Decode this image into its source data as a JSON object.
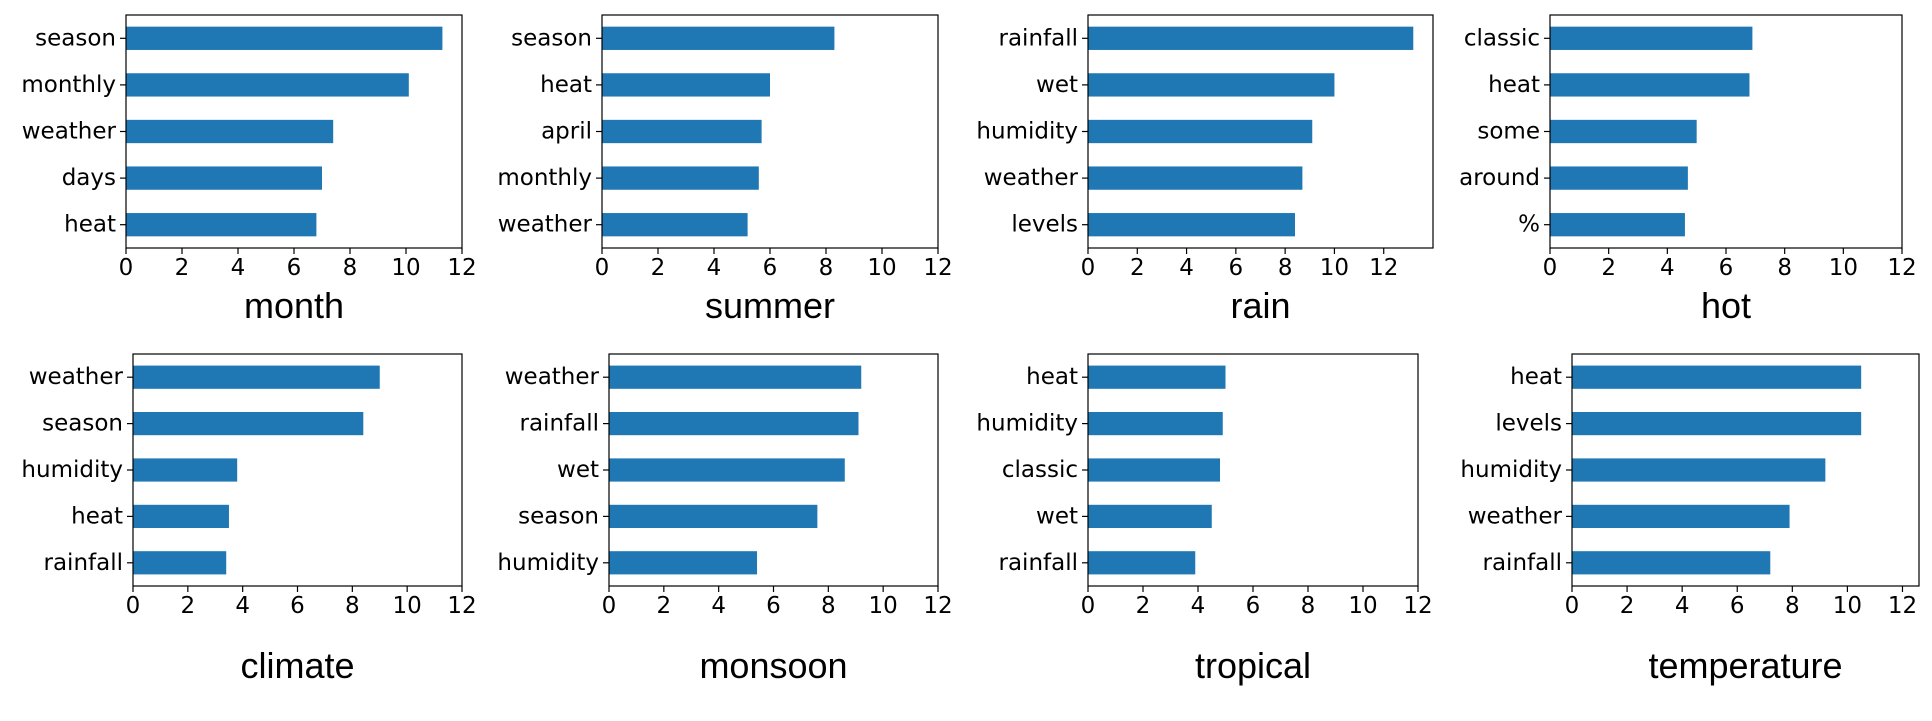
{
  "chart_data": [
    {
      "type": "bar",
      "orientation": "horizontal",
      "title": "month",
      "categories": [
        "season",
        "monthly",
        "weather",
        "days",
        "heat"
      ],
      "values": [
        11.3,
        10.1,
        7.4,
        7.0,
        6.8
      ],
      "xlim": [
        0,
        12
      ],
      "xticks": [
        0,
        2,
        4,
        6,
        8,
        10,
        12
      ]
    },
    {
      "type": "bar",
      "orientation": "horizontal",
      "title": "summer",
      "categories": [
        "season",
        "heat",
        "april",
        "monthly",
        "weather"
      ],
      "values": [
        8.3,
        6.0,
        5.7,
        5.6,
        5.2
      ],
      "xlim": [
        0,
        12
      ],
      "xticks": [
        0,
        2,
        4,
        6,
        8,
        10,
        12
      ]
    },
    {
      "type": "bar",
      "orientation": "horizontal",
      "title": "rain",
      "categories": [
        "rainfall",
        "wet",
        "humidity",
        "weather",
        "levels"
      ],
      "values": [
        13.2,
        10.0,
        9.1,
        8.7,
        8.4
      ],
      "xlim": [
        0,
        14
      ],
      "xticks": [
        0,
        2,
        4,
        6,
        8,
        10,
        12
      ]
    },
    {
      "type": "bar",
      "orientation": "horizontal",
      "title": "hot",
      "categories": [
        "classic",
        "heat",
        "some",
        "around",
        "%"
      ],
      "values": [
        6.9,
        6.8,
        5.0,
        4.7,
        4.6
      ],
      "xlim": [
        0,
        12
      ],
      "xticks": [
        0,
        2,
        4,
        6,
        8,
        10,
        12
      ]
    },
    {
      "type": "bar",
      "orientation": "horizontal",
      "title": "climate",
      "categories": [
        "weather",
        "season",
        "humidity",
        "heat",
        "rainfall"
      ],
      "values": [
        9.0,
        8.4,
        3.8,
        3.5,
        3.4
      ],
      "xlim": [
        0,
        12
      ],
      "xticks": [
        0,
        2,
        4,
        6,
        8,
        10,
        12
      ]
    },
    {
      "type": "bar",
      "orientation": "horizontal",
      "title": "monsoon",
      "categories": [
        "weather",
        "rainfall",
        "wet",
        "season",
        "humidity"
      ],
      "values": [
        9.2,
        9.1,
        8.6,
        7.6,
        5.4
      ],
      "xlim": [
        0,
        12
      ],
      "xticks": [
        0,
        2,
        4,
        6,
        8,
        10,
        12
      ]
    },
    {
      "type": "bar",
      "orientation": "horizontal",
      "title": "tropical",
      "categories": [
        "heat",
        "humidity",
        "classic",
        "wet",
        "rainfall"
      ],
      "values": [
        5.0,
        4.9,
        4.8,
        4.5,
        3.9
      ],
      "xlim": [
        0,
        12
      ],
      "xticks": [
        0,
        2,
        4,
        6,
        8,
        10,
        12
      ]
    },
    {
      "type": "bar",
      "orientation": "horizontal",
      "title": "temperature",
      "categories": [
        "heat",
        "levels",
        "humidity",
        "weather",
        "rainfall"
      ],
      "values": [
        10.5,
        10.5,
        9.2,
        7.9,
        7.2
      ],
      "xlim": [
        0,
        12.6
      ],
      "xticks": [
        0,
        2,
        4,
        6,
        8,
        10,
        12
      ]
    }
  ],
  "colors": {
    "bar": "#1f77b4",
    "axis": "#000000",
    "background": "#ffffff"
  }
}
